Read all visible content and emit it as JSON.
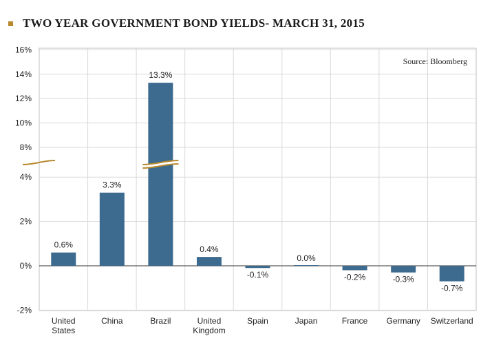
{
  "colors": {
    "bar": "#3d6a8f",
    "accent": "#b8892e",
    "grid": "#d9d9d9",
    "axis": "#333333"
  },
  "chart_data": {
    "type": "bar",
    "title": "TWO YEAR GOVERNMENT BOND YIELDS- MARCH 31, 2015",
    "source": "Source: Bloomberg",
    "categories": [
      [
        "United",
        "States"
      ],
      [
        "China"
      ],
      [
        "Brazil"
      ],
      [
        "United",
        "Kingdom"
      ],
      [
        "Spain"
      ],
      [
        "Japan"
      ],
      [
        "France"
      ],
      [
        "Germany"
      ],
      [
        "Switzerland"
      ]
    ],
    "values": [
      0.6,
      3.3,
      13.3,
      0.4,
      -0.1,
      0.0,
      -0.2,
      -0.3,
      -0.7
    ],
    "value_labels": [
      "0.6%",
      "3.3%",
      "13.3%",
      "0.4%",
      "-0.1%",
      "0.0%",
      "-0.2%",
      "-0.3%",
      "-0.7%"
    ],
    "yticks_lower": [
      -2,
      0,
      2,
      4
    ],
    "yticks_upper": [
      8,
      10,
      12,
      14,
      16
    ],
    "ytick_labels": {
      "-2": "-2%",
      "0": "0%",
      "2": "2%",
      "4": "4%",
      "8": "8%",
      "10": "10%",
      "12": "12%",
      "14": "14%",
      "16": "16%"
    },
    "axis_break": {
      "from": 5,
      "to": 7.5
    },
    "ylim": [
      -2,
      16
    ],
    "grid": true
  }
}
